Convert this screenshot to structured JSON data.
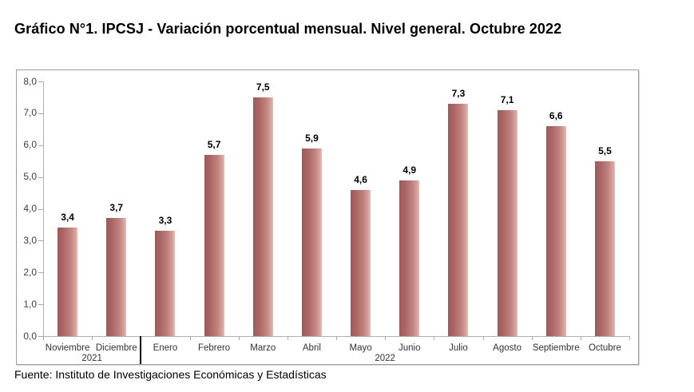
{
  "page": {
    "title": "Gráfico N°1. IPCSJ - Variación porcentual mensual. Nivel general. Octubre 2022",
    "source": "Fuente: Instituto de Investigaciones Económicas y Estadísticas"
  },
  "chart_data": {
    "type": "bar",
    "title": "Gráfico N°1. IPCSJ - Variación porcentual mensual. Nivel general. Octubre 2022",
    "xlabel": "",
    "ylabel": "",
    "categories": [
      "Noviembre",
      "Diciembre",
      "Enero",
      "Febrero",
      "Marzo",
      "Abril",
      "Mayo",
      "Junio",
      "Julio",
      "Agosto",
      "Septiembre",
      "Octubre"
    ],
    "values": [
      3.4,
      3.7,
      3.3,
      5.7,
      7.5,
      5.9,
      4.6,
      4.9,
      7.3,
      7.1,
      6.6,
      5.5
    ],
    "value_labels": [
      "3,4",
      "3,7",
      "3,3",
      "5,7",
      "7,5",
      "5,9",
      "4,6",
      "4,9",
      "7,3",
      "7,1",
      "6,6",
      "5,5"
    ],
    "y_tick_labels": [
      "0,0",
      "1,0",
      "2,0",
      "3,0",
      "4,0",
      "5,0",
      "6,0",
      "7,0",
      "8,0"
    ],
    "ylim": [
      0,
      8
    ],
    "y_step": 1,
    "grid": false,
    "legend": null,
    "year_groups": [
      {
        "label": "2021",
        "start_index": 0,
        "end_index": 1
      },
      {
        "label": "2022",
        "start_index": 2,
        "end_index": 11
      }
    ],
    "bar_gradient": [
      "#9c5957",
      "#c0827e",
      "#e3bfb9"
    ],
    "axis_color": "#b0b0b0",
    "decimal_separator": ","
  }
}
